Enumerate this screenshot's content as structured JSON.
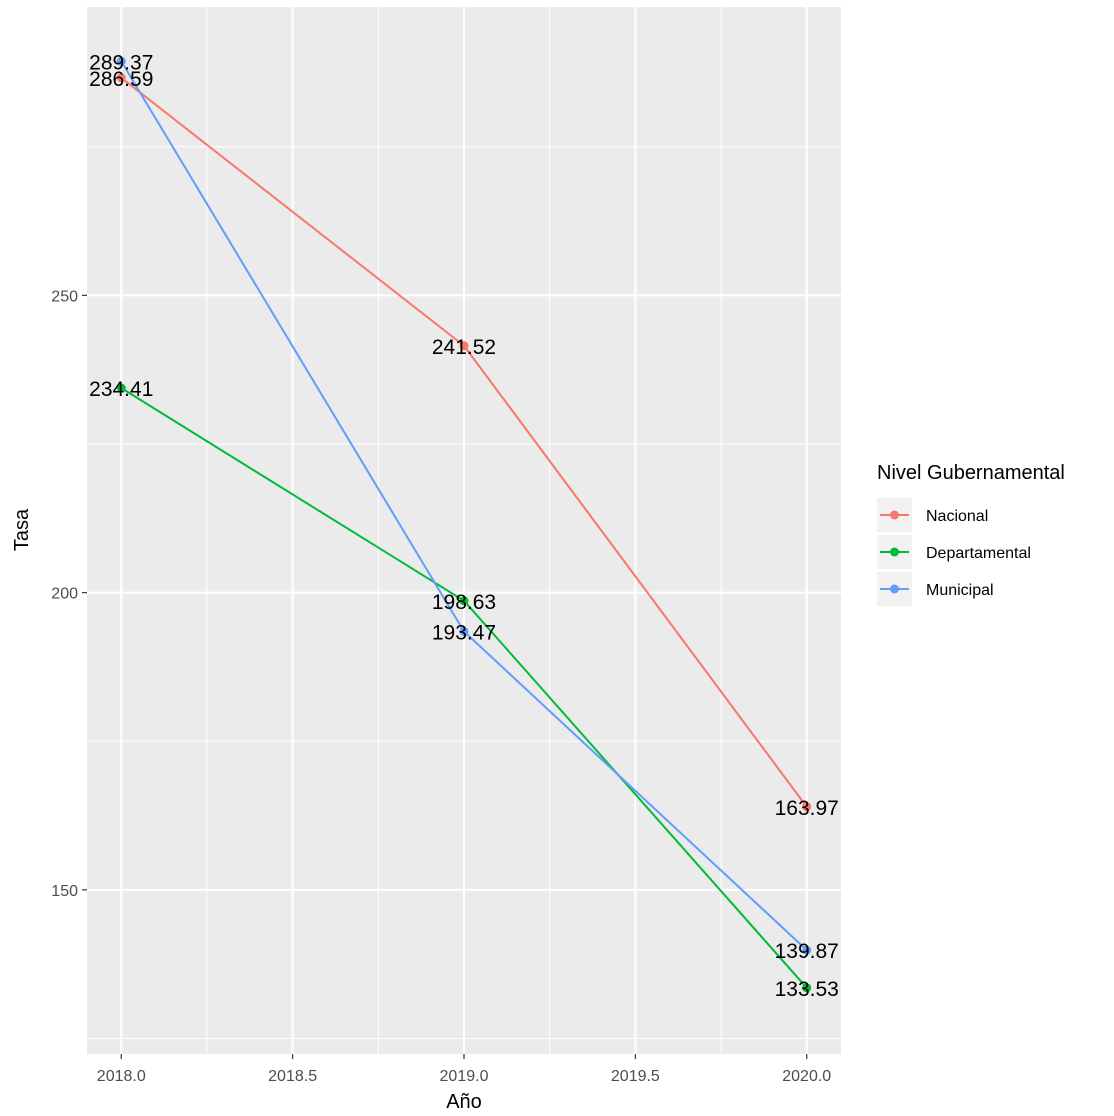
{
  "chart_data": {
    "type": "line",
    "xlabel": "Año",
    "ylabel": "Tasa",
    "x": [
      2018,
      2019,
      2020
    ],
    "xlim": [
      2017.9,
      2020.1
    ],
    "ylim": [
      122.4,
      298.5
    ],
    "x_ticks": [
      2018.0,
      2018.5,
      2019.0,
      2019.5,
      2020.0
    ],
    "x_tick_labels": [
      "2018.0",
      "2018.5",
      "2019.0",
      "2019.5",
      "2020.0"
    ],
    "y_ticks": [
      150,
      200,
      250
    ],
    "y_tick_labels": [
      "150",
      "200",
      "250"
    ],
    "grid": true,
    "legend": {
      "title": "Nivel Gubernamental",
      "position": "right"
    },
    "series": [
      {
        "name": "Nacional",
        "color": "#F8766D",
        "values": [
          286.59,
          241.52,
          163.97
        ],
        "labels": [
          "286.59",
          "241.52",
          "163.97"
        ]
      },
      {
        "name": "Departamental",
        "color": "#00BA38",
        "values": [
          234.41,
          198.63,
          133.53
        ],
        "labels": [
          "234.41",
          "198.63",
          "133.53"
        ]
      },
      {
        "name": "Municipal",
        "color": "#619CFF",
        "values": [
          289.37,
          193.47,
          139.87
        ],
        "labels": [
          "289.37",
          "193.47",
          "139.87"
        ]
      }
    ]
  }
}
